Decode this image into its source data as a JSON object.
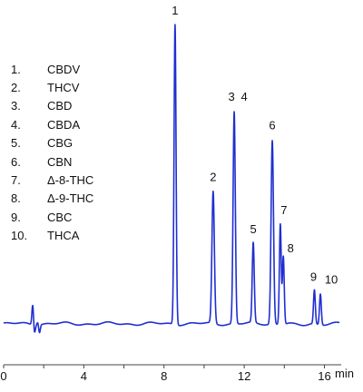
{
  "chart_data": {
    "type": "line",
    "title": "",
    "xlabel": "min",
    "ylabel": "",
    "xlim": [
      0,
      17.2
    ],
    "ylim": [
      0,
      100
    ],
    "x_ticks": [
      0,
      4,
      8,
      12,
      16
    ],
    "x_tick_labels": [
      "0",
      "4",
      "8",
      "12",
      "16"
    ],
    "grid": false,
    "legend": [
      {
        "number": "1.",
        "name": "CBDV"
      },
      {
        "number": "2.",
        "name": "THCV"
      },
      {
        "number": "3.",
        "name": "CBD"
      },
      {
        "number": "4.",
        "name": "CBDA"
      },
      {
        "number": "5.",
        "name": "CBG"
      },
      {
        "number": "6.",
        "name": "CBN"
      },
      {
        "number": "7.",
        "name": "Δ-8-THC"
      },
      {
        "number": "8.",
        "name": "Δ-9-THC"
      },
      {
        "number": "9.",
        "name": "CBC"
      },
      {
        "number": "10.",
        "name": "THCA"
      }
    ],
    "series": [
      {
        "color": "#1f2fd0",
        "baseline": 3.0,
        "peaks": [
          {
            "label": "1",
            "x": 8.55,
            "y": 100,
            "width": 0.05
          },
          {
            "label": "2",
            "x": 10.45,
            "y": 45.6,
            "width": 0.06
          },
          {
            "label": "3",
            "x": 11.5,
            "y": 71.5,
            "width": 0.055
          },
          {
            "label": "4",
            "x": null,
            "y": null,
            "width": null
          },
          {
            "label": "5",
            "x": 12.45,
            "y": 28.8,
            "width": 0.05
          },
          {
            "label": "6",
            "x": 13.4,
            "y": 62.3,
            "width": 0.06
          },
          {
            "label": "7",
            "x": 13.8,
            "y": 35.5,
            "width": 0.045
          },
          {
            "label": "8",
            "x": 13.95,
            "y": 25.0,
            "width": 0.045
          },
          {
            "label": "9",
            "x": 15.5,
            "y": 14.0,
            "width": 0.045
          },
          {
            "label": "10",
            "x": 15.8,
            "y": 13.0,
            "width": 0.045
          }
        ],
        "artifacts": [
          {
            "x": 1.45,
            "y": 9.5,
            "width": 0.04
          },
          {
            "x": 1.7,
            "y": 4.0,
            "width": 0.04
          }
        ]
      }
    ]
  }
}
